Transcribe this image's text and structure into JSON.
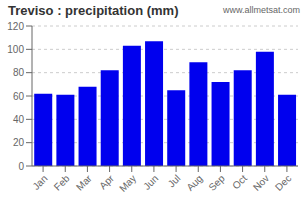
{
  "chart_data": {
    "type": "bar",
    "title": "Treviso : precipitation (mm)",
    "annotations": [
      "www.allmetsat.com"
    ],
    "categories": [
      "Jan",
      "Feb",
      "Mar",
      "Apr",
      "May",
      "Jun",
      "Jul",
      "Aug",
      "Sep",
      "Oct",
      "Nov",
      "Dec"
    ],
    "values": [
      62,
      61,
      68,
      82,
      103,
      107,
      65,
      89,
      72,
      82,
      98,
      61
    ],
    "color": "#0000EE",
    "ylim": [
      0,
      120
    ],
    "yticks": [
      0,
      20,
      40,
      60,
      80,
      100,
      120
    ],
    "grid": true
  }
}
